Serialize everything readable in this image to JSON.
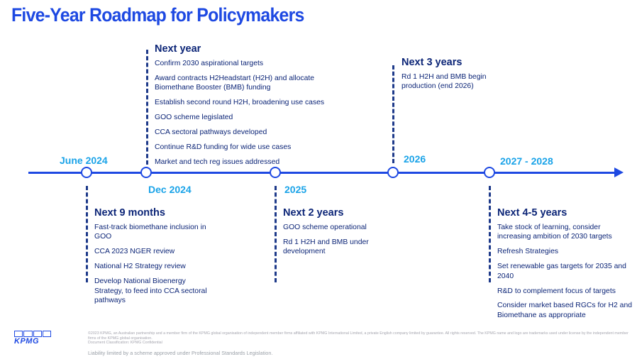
{
  "title": "Five-Year Roadmap for Policymakers",
  "timeline": {
    "dates_above": {
      "june_2024": "June 2024",
      "y2026": "2026",
      "y2027_2028": "2027 - 2028"
    },
    "dates_below": {
      "dec_2024": "Dec 2024",
      "y2025": "2025"
    }
  },
  "blocks": {
    "next_year": {
      "heading": "Next year",
      "items": [
        "Confirm 2030 aspirational targets",
        "Award contracts H2Headstart (H2H) and allocate Biomethane Booster (BMB) funding",
        "Establish second round H2H, broadening use cases",
        "GOO scheme legislated",
        "CCA sectoral pathways developed",
        "Continue R&D funding for wide use cases",
        "Market and tech reg issues addressed"
      ]
    },
    "next_3_years": {
      "heading": "Next 3 years",
      "items": [
        "Rd 1 H2H and BMB begin production (end 2026)"
      ]
    },
    "next_9_months": {
      "heading": "Next 9 months",
      "items": [
        "Fast-track biomethane inclusion in GOO",
        "CCA 2023 NGER review",
        "National H2 Strategy review",
        "Develop National Bioenergy Strategy, to feed into CCA sectoral pathways"
      ]
    },
    "next_2_years": {
      "heading": "Next 2 years",
      "items": [
        "GOO scheme operational",
        "Rd 1 H2H and BMB under development"
      ]
    },
    "next_4_5_years": {
      "heading": "Next 4-5 years",
      "items": [
        "Take stock of learning, consider increasing ambition of 2030 targets",
        "Refresh Strategies",
        "Set renewable gas targets for 2035 and 2040",
        "R&D to complement focus of targets",
        "Consider market based RGCs for H2 and Biomethane as appropriate"
      ]
    }
  },
  "footer": {
    "logo_text": "KPMG",
    "legal_1": "©2023 KPMG, an Australian partnership and a member firm of the KPMG global organisation of independent member firms affiliated with KPMG International Limited, a private English company limited by guarantee. All rights reserved. The KPMG name and logo are trademarks used under license by the independent member firms of the KPMG global organisation.",
    "legal_2": "Document Classification: KPMG Confidential",
    "liability": "Liability limited by a scheme approved under Professional Standards Legislation."
  },
  "colors": {
    "accent_blue": "#1e49e2",
    "date_cyan": "#1aa3e8",
    "text_navy": "#0c2577"
  }
}
